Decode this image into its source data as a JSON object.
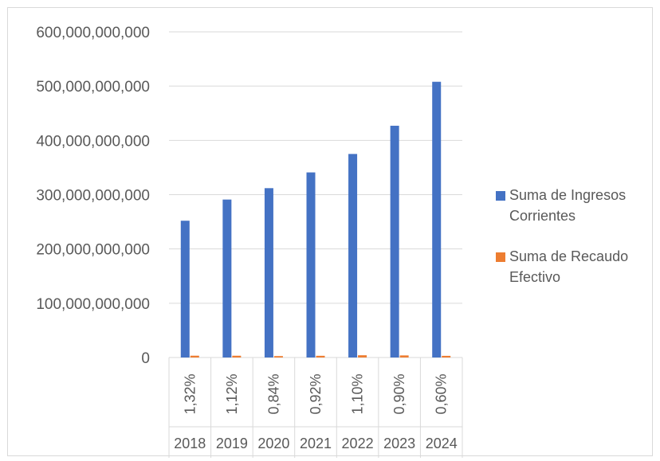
{
  "chart_data": {
    "type": "bar",
    "categories": [
      "2018",
      "2019",
      "2020",
      "2021",
      "2022",
      "2023",
      "2024"
    ],
    "category_sublabels": [
      "1,32%",
      "1,12%",
      "0,84%",
      "0,92%",
      "1,10%",
      "0,90%",
      "0,60%"
    ],
    "series": [
      {
        "name": "Suma de Ingresos Corrientes",
        "color": "#4472C4",
        "values": [
          252000000000,
          291000000000,
          312000000000,
          341000000000,
          375000000000,
          427000000000,
          508000000000
        ]
      },
      {
        "name": "Suma de Recaudo Efectivo",
        "color": "#ED7D31",
        "values": [
          3326400000,
          3259200000,
          2620800000,
          3137200000,
          4125000000,
          3843000000,
          3048000000
        ]
      }
    ],
    "ylim": [
      0,
      600000000000
    ],
    "yticks": [
      "0",
      "100,000,000,000",
      "200,000,000,000",
      "300,000,000,000",
      "400,000,000,000",
      "500,000,000,000",
      "600,000,000,000"
    ],
    "grid": true,
    "legend_position": "right"
  }
}
